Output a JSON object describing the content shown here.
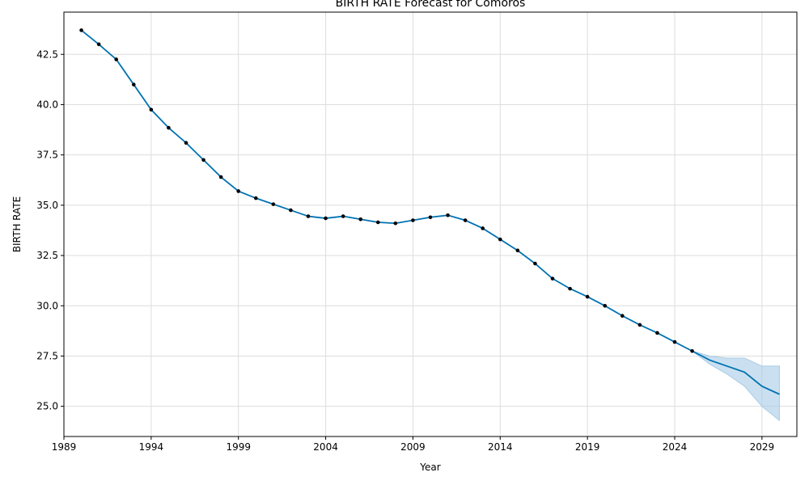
{
  "chart_data": {
    "type": "line",
    "title": "BIRTH RATE Forecast for Comoros",
    "xlabel": "Year",
    "ylabel": "BIRTH RATE",
    "xlim": [
      1989,
      2031
    ],
    "ylim": [
      23.5,
      44.6
    ],
    "x_ticks": [
      1989,
      1994,
      1999,
      2004,
      2009,
      2014,
      2019,
      2024,
      2029
    ],
    "y_ticks": [
      25.0,
      27.5,
      30.0,
      32.5,
      35.0,
      37.5,
      40.0,
      42.5
    ],
    "y_tick_labels": [
      "25.0",
      "27.5",
      "30.0",
      "32.5",
      "35.0",
      "37.5",
      "40.0",
      "42.5"
    ],
    "grid": true,
    "colors": {
      "line": "#0072b2",
      "band": "#a6cbe6",
      "points": "#000000",
      "grid": "#dddddd"
    },
    "observed": {
      "x": [
        1990,
        1991,
        1992,
        1993,
        1994,
        1995,
        1996,
        1997,
        1998,
        1999,
        2000,
        2001,
        2002,
        2003,
        2004,
        2005,
        2006,
        2007,
        2008,
        2009,
        2010,
        2011,
        2012,
        2013,
        2014,
        2015,
        2016,
        2017,
        2018,
        2019,
        2020,
        2021,
        2022,
        2023,
        2024,
        2025
      ],
      "y": [
        43.7,
        43.0,
        42.25,
        41.0,
        39.75,
        38.85,
        38.1,
        37.25,
        36.4,
        35.7,
        35.35,
        35.05,
        34.75,
        34.45,
        34.35,
        34.45,
        34.3,
        34.15,
        34.1,
        34.25,
        34.4,
        34.5,
        34.25,
        33.85,
        33.3,
        32.75,
        32.1,
        31.35,
        30.85,
        30.45,
        30.0,
        29.5,
        29.05,
        28.65,
        28.2,
        27.75
      ]
    },
    "forecast": {
      "x": [
        2025,
        2026,
        2027,
        2028,
        2029,
        2030
      ],
      "y": [
        27.75,
        27.3,
        27.0,
        26.7,
        26.0,
        25.6
      ],
      "upper": [
        27.75,
        27.5,
        27.4,
        27.4,
        27.0,
        27.0
      ],
      "lower": [
        27.75,
        27.1,
        26.6,
        26.0,
        25.0,
        24.3
      ]
    }
  }
}
